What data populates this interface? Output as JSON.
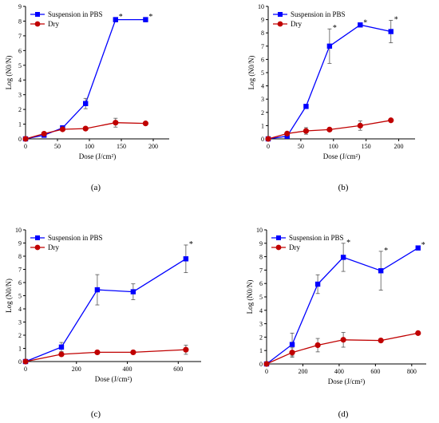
{
  "figure": {
    "panel_labels": [
      "(a)",
      "(b)",
      "(c)",
      "(d)"
    ]
  },
  "colors": {
    "pbs": "#0000ff",
    "dry": "#c00000",
    "error_bar": "#555555",
    "axis": "#000000"
  },
  "chart_data": [
    {
      "type": "line",
      "panel": "(a)",
      "xlabel": "Dose (J/cm²)",
      "ylabel": "Log (N0/N)",
      "xlim": [
        0,
        225
      ],
      "ylim": [
        0,
        9
      ],
      "xticks": [
        0,
        50,
        100,
        150,
        200
      ],
      "yticks": [
        0,
        1,
        2,
        3,
        4,
        5,
        6,
        7,
        8,
        9
      ],
      "grid": false,
      "legend": "top-left",
      "series": [
        {
          "name": "Suspension in PBS",
          "marker": "square",
          "x": [
            0,
            29,
            58,
            94,
            141,
            188
          ],
          "y": [
            0,
            0.25,
            0.75,
            2.4,
            8.1,
            8.1
          ],
          "err": [
            0,
            0.08,
            0.1,
            0.35,
            0.15,
            0.15
          ],
          "significant": [
            false,
            false,
            false,
            false,
            true,
            true
          ]
        },
        {
          "name": "Dry",
          "marker": "circle",
          "x": [
            0,
            29,
            58,
            94,
            141,
            188
          ],
          "y": [
            0,
            0.35,
            0.65,
            0.7,
            1.1,
            1.05
          ],
          "err": [
            0,
            0.08,
            0.1,
            0.05,
            0.3,
            0.05
          ],
          "significant": [
            false,
            false,
            false,
            false,
            false,
            false
          ]
        }
      ]
    },
    {
      "type": "line",
      "panel": "(b)",
      "xlabel": "Dose (J/cm²)",
      "ylabel": "Log (N0/N)",
      "xlim": [
        0,
        225
      ],
      "ylim": [
        0,
        10
      ],
      "xticks": [
        0,
        50,
        100,
        150,
        200
      ],
      "yticks": [
        0,
        1,
        2,
        3,
        4,
        5,
        6,
        7,
        8,
        9,
        10
      ],
      "grid": false,
      "legend": "top-left",
      "series": [
        {
          "name": "Suspension in PBS",
          "marker": "square",
          "x": [
            0,
            29,
            58,
            94,
            141,
            188
          ],
          "y": [
            0,
            0.2,
            2.45,
            7.0,
            8.6,
            8.1
          ],
          "err": [
            0,
            0.05,
            0.1,
            1.3,
            0.1,
            0.85
          ],
          "significant": [
            false,
            false,
            false,
            true,
            true,
            true
          ]
        },
        {
          "name": "Dry",
          "marker": "circle",
          "x": [
            0,
            29,
            58,
            94,
            141,
            188
          ],
          "y": [
            0,
            0.4,
            0.6,
            0.7,
            1.0,
            1.4
          ],
          "err": [
            0,
            0.1,
            0.25,
            0.1,
            0.35,
            0.1
          ],
          "significant": [
            false,
            false,
            false,
            false,
            false,
            false
          ]
        }
      ]
    },
    {
      "type": "line",
      "panel": "(c)",
      "xlabel": "Dose (J/cm²)",
      "ylabel": "Log (N0/N)",
      "xlim": [
        0,
        690
      ],
      "ylim": [
        0,
        10
      ],
      "xticks": [
        0,
        200,
        400,
        600
      ],
      "yticks": [
        0,
        1,
        2,
        3,
        4,
        5,
        6,
        7,
        8,
        9,
        10
      ],
      "grid": false,
      "legend": "top-left",
      "series": [
        {
          "name": "Suspension in PBS",
          "marker": "square",
          "x": [
            0,
            141,
            282,
            423,
            630
          ],
          "y": [
            0,
            1.1,
            5.45,
            5.3,
            7.8
          ],
          "err": [
            0,
            0.35,
            1.15,
            0.6,
            1.05
          ],
          "significant": [
            false,
            false,
            false,
            false,
            true
          ]
        },
        {
          "name": "Dry",
          "marker": "circle",
          "x": [
            0,
            141,
            282,
            423,
            630
          ],
          "y": [
            0,
            0.55,
            0.7,
            0.7,
            0.9
          ],
          "err": [
            0,
            0.05,
            0.05,
            0.05,
            0.35
          ],
          "significant": [
            false,
            false,
            false,
            false,
            false
          ]
        }
      ]
    },
    {
      "type": "line",
      "panel": "(d)",
      "xlabel": "Dose (J/cm²)",
      "ylabel": "Log (N0/N)",
      "xlim": [
        0,
        880
      ],
      "ylim": [
        0,
        10
      ],
      "xticks": [
        0,
        200,
        400,
        600,
        800
      ],
      "yticks": [
        0,
        1,
        2,
        3,
        4,
        5,
        6,
        7,
        8,
        9,
        10
      ],
      "grid": false,
      "legend": "top-left",
      "series": [
        {
          "name": "Suspension in PBS",
          "marker": "square",
          "x": [
            0,
            141,
            282,
            423,
            630,
            835
          ],
          "y": [
            0,
            1.45,
            5.95,
            7.95,
            6.95,
            8.65
          ],
          "err": [
            0,
            0.85,
            0.7,
            1.05,
            1.45,
            0.15
          ],
          "significant": [
            false,
            false,
            false,
            true,
            true,
            true
          ]
        },
        {
          "name": "Dry",
          "marker": "circle",
          "x": [
            0,
            141,
            282,
            423,
            630,
            835
          ],
          "y": [
            0,
            0.85,
            1.4,
            1.8,
            1.75,
            2.3
          ],
          "err": [
            0,
            0.35,
            0.5,
            0.55,
            0.1,
            0.1
          ],
          "significant": [
            false,
            false,
            false,
            false,
            false,
            false
          ]
        }
      ]
    }
  ]
}
